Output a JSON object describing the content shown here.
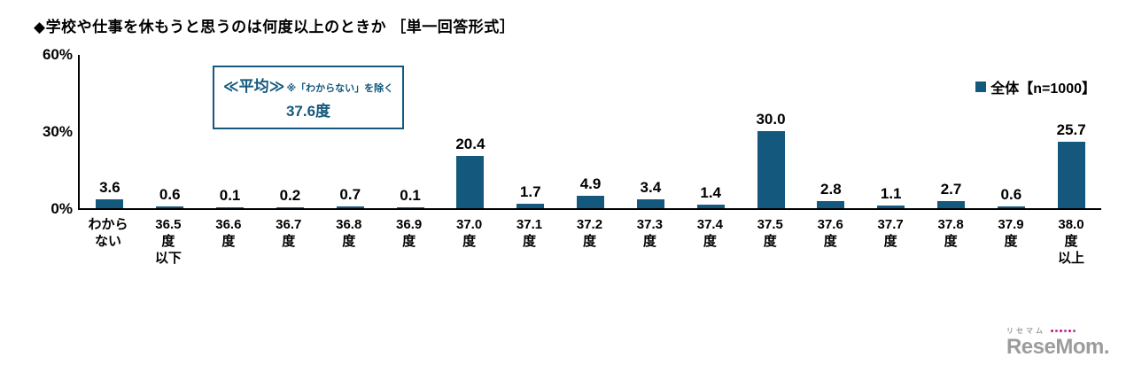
{
  "title": "◆学校や仕事を休もうと思うのは何度以上のときか ［単一回答形式］",
  "y_axis": {
    "labels": [
      "60%",
      "30%",
      "0%"
    ],
    "max_percent": 60
  },
  "legend": {
    "swatch_color": "#14587E",
    "label": "全体【n=1000】"
  },
  "average_box": {
    "heading": "≪平均≫",
    "note": "※「わからない」を除く",
    "value": "37.6度",
    "border_color": "#14587E",
    "text_color": "#14587E"
  },
  "chart_data": {
    "type": "bar",
    "title": "学校や仕事を休もうと思うのは何度以上のときか（単一回答形式）",
    "categories": [
      "わからない",
      "36.5度以下",
      "36.6度",
      "36.7度",
      "36.8度",
      "36.9度",
      "37.0度",
      "37.1度",
      "37.2度",
      "37.3度",
      "37.4度",
      "37.5度",
      "37.6度",
      "37.7度",
      "37.8度",
      "37.9度",
      "38.0度以上"
    ],
    "values": [
      3.6,
      0.6,
      0.1,
      0.2,
      0.7,
      0.1,
      20.4,
      1.7,
      4.9,
      3.4,
      1.4,
      30.0,
      2.8,
      1.1,
      2.7,
      0.6,
      25.7
    ],
    "series_name": "全体【n=1000】",
    "xlabel": "",
    "ylabel": "%",
    "ylim": [
      0,
      60
    ],
    "bar_color": "#14587E",
    "grid": false,
    "legend_position": "top-right",
    "annotation": "≪平均≫※「わからない」を除く 37.6度"
  },
  "watermark": {
    "kana": "リセマム",
    "text": "ReseMom.",
    "dot_colors": [
      "#e6007e",
      "#9b4d9e",
      "#e6007e",
      "#9b4d9e",
      "#e6007e",
      "#9b4d9e"
    ]
  }
}
